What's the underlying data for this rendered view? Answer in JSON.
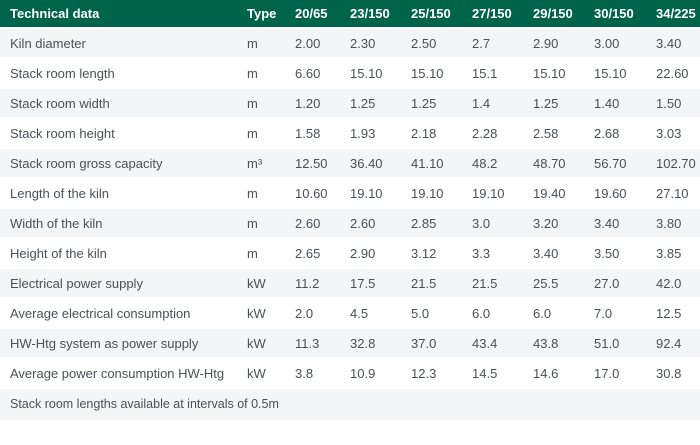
{
  "chart_data": {
    "type": "table",
    "title": "Technical data",
    "unit_column_label": "Type",
    "model_columns": [
      "20/65",
      "23/150",
      "25/150",
      "27/150",
      "29/150",
      "30/150",
      "34/225"
    ],
    "rows": [
      {
        "label": "Kiln diameter",
        "unit": "m",
        "values": [
          "2.00",
          "2.30",
          "2.50",
          "2.7",
          "2.90",
          "3.00",
          "3.40"
        ]
      },
      {
        "label": "Stack room length",
        "unit": "m",
        "values": [
          "6.60",
          "15.10",
          "15.10",
          "15.1",
          "15.10",
          "15.10",
          "22.60"
        ]
      },
      {
        "label": "Stack room width",
        "unit": "m",
        "values": [
          "1.20",
          "1.25",
          "1.25",
          "1.4",
          "1.25",
          "1.40",
          "1.50"
        ]
      },
      {
        "label": "Stack room height",
        "unit": "m",
        "values": [
          "1.58",
          "1.93",
          "2.18",
          "2.28",
          "2.58",
          "2.68",
          "3.03"
        ]
      },
      {
        "label": "Stack room gross capacity",
        "unit": "m³",
        "values": [
          "12.50",
          "36.40",
          "41.10",
          "48.2",
          "48.70",
          "56.70",
          "102.70"
        ]
      },
      {
        "label": "Length of the kiln",
        "unit": "m",
        "values": [
          "10.60",
          "19.10",
          "19.10",
          "19.10",
          "19.40",
          "19.60",
          "27.10"
        ]
      },
      {
        "label": "Width of the kiln",
        "unit": "m",
        "values": [
          "2.60",
          "2.60",
          "2.85",
          "3.0",
          "3.20",
          "3.40",
          "3.80"
        ]
      },
      {
        "label": "Height of the kiln",
        "unit": "m",
        "values": [
          "2.65",
          "2.90",
          "3.12",
          "3.3",
          "3.40",
          "3.50",
          "3.85"
        ]
      },
      {
        "label": "Electrical power supply",
        "unit": "kW",
        "values": [
          "11.2",
          "17.5",
          "21.5",
          "21.5",
          "25.5",
          "27.0",
          "42.0"
        ]
      },
      {
        "label": "Average electrical consumption",
        "unit": "kW",
        "values": [
          "2.0",
          "4.5",
          "5.0",
          "6.0",
          "6.0",
          "7.0",
          "12.5"
        ]
      },
      {
        "label": "HW-Htg system as power supply",
        "unit": "kW",
        "values": [
          "11.3",
          "32.8",
          "37.0",
          "43.4",
          "43.8",
          "51.0",
          "92.4"
        ]
      },
      {
        "label": "Average power consumption HW-Htg",
        "unit": "kW",
        "values": [
          "3.8",
          "10.9",
          "12.3",
          "14.5",
          "14.6",
          "17.0",
          "30.8"
        ]
      }
    ],
    "footnote": "Stack room lengths available at intervals of 0.5m"
  },
  "colors": {
    "header_bg": "#00644b",
    "header_text": "#ffffff",
    "stripe_bg": "#f3f5f6",
    "row_bg": "#ffffff",
    "footer_bg": "#f4f5f7",
    "text": "#4b5055"
  }
}
